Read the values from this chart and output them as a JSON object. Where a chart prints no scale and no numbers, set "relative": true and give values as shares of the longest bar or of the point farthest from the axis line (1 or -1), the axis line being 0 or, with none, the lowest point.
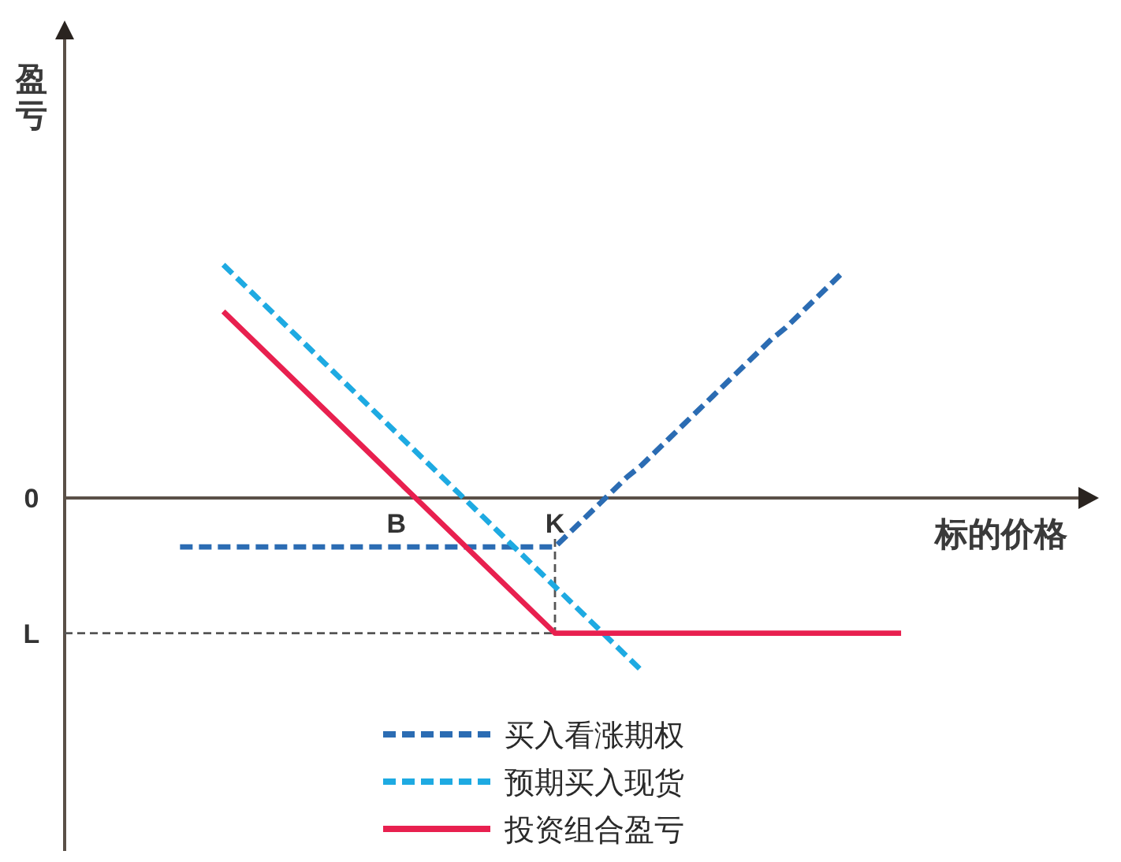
{
  "chart_data": {
    "type": "line",
    "relative": true,
    "xlabel": "标的价格",
    "ylabel": "盈亏",
    "legend": "bottom",
    "marker": "none",
    "categories": [
      null,
      null,
      null,
      null,
      null,
      null,
      null,
      null,
      null,
      null,
      null,
      null,
      null,
      null,
      null,
      null,
      null,
      null,
      null,
      null,
      null,
      null,
      null,
      "B",
      null,
      null,
      null,
      null,
      null,
      null,
      null,
      null,
      null,
      null,
      "K",
      null,
      null,
      null,
      null,
      null,
      null,
      null,
      null,
      null,
      null,
      null,
      null,
      null,
      null,
      null,
      null,
      null,
      null,
      null,
      null,
      null,
      null,
      null,
      null
    ],
    "series": [
      {
        "name": "买入看涨期权",
        "color": "#2b6cb3",
        "line_style": "dashed",
        "values": [
          null,
          null,
          null,
          null,
          null,
          null,
          null,
          null,
          -0.21,
          -0.21,
          -0.21,
          -0.21,
          -0.21,
          -0.21,
          -0.21,
          -0.21,
          -0.21,
          -0.21,
          -0.21,
          -0.21,
          -0.21,
          -0.21,
          -0.21,
          -0.21,
          -0.21,
          -0.21,
          -0.21,
          -0.21,
          -0.21,
          -0.21,
          -0.21,
          -0.21,
          -0.21,
          -0.21,
          -0.21,
          -0.15,
          -0.09,
          -0.03,
          0.03,
          0.09,
          0.14,
          0.2,
          0.26,
          0.32,
          0.38,
          0.44,
          0.5,
          0.56,
          0.62,
          0.68,
          0.73,
          0.79,
          0.85,
          0.91,
          0.97,
          null,
          null,
          null,
          null
        ]
      },
      {
        "name": "预期买入现货",
        "color": "#1eaae2",
        "line_style": "dashed",
        "values": [
          null,
          null,
          null,
          null,
          null,
          null,
          null,
          null,
          null,
          null,
          null,
          1,
          0.94,
          0.88,
          0.82,
          0.76,
          0.7,
          0.64,
          0.58,
          0.52,
          0.46,
          0.4,
          0.34,
          0.28,
          0.22,
          0.16,
          0.1,
          0.04,
          -0.02,
          -0.08,
          -0.14,
          -0.2,
          -0.26,
          -0.32,
          -0.38,
          -0.44,
          -0.5,
          -0.56,
          -0.62,
          -0.68,
          -0.74,
          null,
          null,
          null,
          null,
          null,
          null,
          null,
          null,
          null,
          null,
          null,
          null,
          null,
          null,
          null,
          null,
          null,
          null
        ]
      },
      {
        "name": "投资组合盈亏",
        "color": "#e8204f",
        "line_style": "solid",
        "values": [
          null,
          null,
          null,
          null,
          null,
          null,
          null,
          null,
          null,
          null,
          null,
          0.8,
          0.74,
          0.68,
          0.62,
          0.56,
          0.5,
          0.44,
          0.38,
          0.32,
          0.26,
          0.2,
          0.14,
          0.08,
          0.02,
          -0.04,
          -0.1,
          -0.16,
          -0.22,
          -0.28,
          -0.34,
          -0.4,
          -0.46,
          -0.52,
          -0.58,
          -0.58,
          -0.58,
          -0.58,
          -0.58,
          -0.58,
          -0.58,
          -0.58,
          -0.58,
          -0.58,
          -0.58,
          -0.58,
          -0.58,
          -0.58,
          -0.58,
          -0.58,
          -0.58,
          -0.58,
          -0.58,
          -0.58,
          -0.58,
          -0.58,
          -0.58,
          -0.58,
          -0.58
        ]
      }
    ],
    "ref_lines": [
      {
        "axis": "y",
        "value": -0.58,
        "label": "L",
        "color": "#555555",
        "line_style": "dashed"
      },
      {
        "axis": "x",
        "value": "K",
        "color": "#555555",
        "line_style": "dashed"
      }
    ],
    "annotations": [
      "0"
    ]
  }
}
